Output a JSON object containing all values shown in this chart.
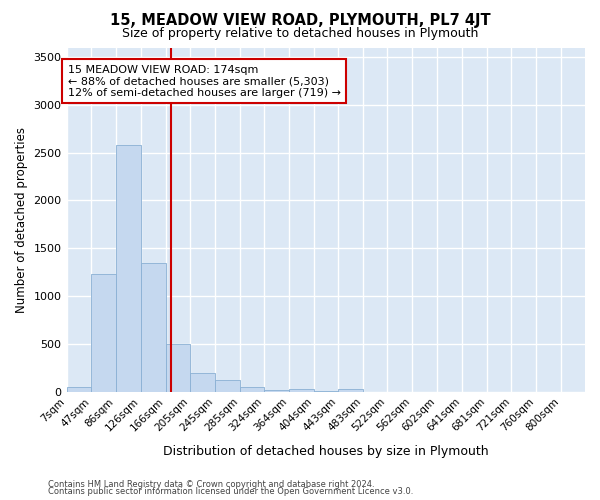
{
  "title": "15, MEADOW VIEW ROAD, PLYMOUTH, PL7 4JT",
  "subtitle": "Size of property relative to detached houses in Plymouth",
  "xlabel": "Distribution of detached houses by size in Plymouth",
  "ylabel": "Number of detached properties",
  "bar_labels": [
    "7sqm",
    "47sqm",
    "86sqm",
    "126sqm",
    "166sqm",
    "205sqm",
    "245sqm",
    "285sqm",
    "324sqm",
    "364sqm",
    "404sqm",
    "443sqm",
    "483sqm",
    "522sqm",
    "562sqm",
    "602sqm",
    "641sqm",
    "681sqm",
    "721sqm",
    "760sqm",
    "800sqm"
  ],
  "bar_edges": [
    7,
    47,
    86,
    126,
    166,
    205,
    245,
    285,
    324,
    364,
    404,
    443,
    483,
    522,
    562,
    602,
    641,
    681,
    721,
    760,
    800,
    839
  ],
  "bar_heights": [
    50,
    1230,
    2580,
    1350,
    500,
    200,
    120,
    50,
    15,
    30,
    10,
    30,
    0,
    0,
    0,
    0,
    0,
    0,
    0,
    0,
    0
  ],
  "bar_color": "#c5d8ef",
  "bar_edge_color": "#8ab0d4",
  "property_sqm": 174,
  "property_bin_index": 4,
  "annotation_line1": "15 MEADOW VIEW ROAD: 174sqm",
  "annotation_line2": "← 88% of detached houses are smaller (5,303)",
  "annotation_line3": "12% of semi-detached houses are larger (719) →",
  "ylim": [
    0,
    3600
  ],
  "yticks": [
    0,
    500,
    1000,
    1500,
    2000,
    2500,
    3000,
    3500
  ],
  "footer1": "Contains HM Land Registry data © Crown copyright and database right 2024.",
  "footer2": "Contains public sector information licensed under the Open Government Licence v3.0.",
  "bg_color": "#ffffff",
  "plot_bg_color": "#dce8f5",
  "grid_color": "#ffffff",
  "red_line_color": "#cc0000",
  "annotation_box_facecolor": "#ffffff",
  "annotation_box_edgecolor": "#cc0000"
}
